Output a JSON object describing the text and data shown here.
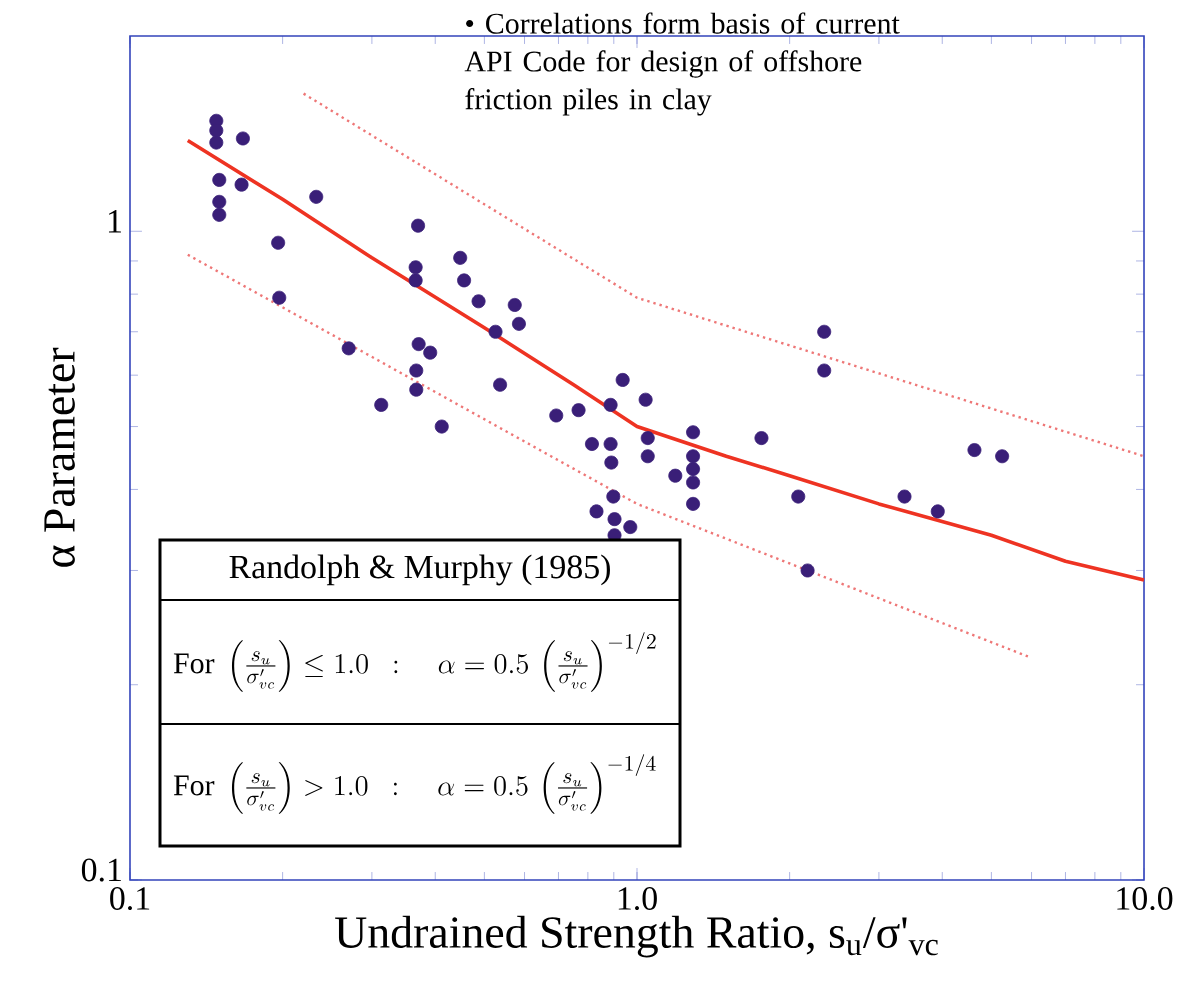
{
  "chart_data": {
    "type": "scatter",
    "xlabel": "Undrained Strength Ratio, s$_{u}$/σ'$_{vc}$",
    "ylabel": "α Parameter",
    "log": "xy",
    "xlim": [
      0.1,
      10
    ],
    "ylim": [
      0.1,
      2
    ],
    "xticks": [
      {
        "value": 0.1,
        "label": "0.1"
      },
      {
        "value": 1,
        "label": "1.0"
      },
      {
        "value": 10,
        "label": "10.0"
      }
    ],
    "yticks": [
      0.1,
      1
    ],
    "annotations": [
      "• Correlations form basis of current API Code for design of offshore friction piles in clay",
      "Randolph & Murphy (1985)",
      "\\mathrm{For}\\ \\left(\\frac{s_u}{\\sigma'_{vc}}\\right)\\leq 1.0\\ \\ :\\quad \\alpha = 0.5\\,\\left(\\frac{s_u}{\\sigma'_{vc}}\\right)^{-1/2}",
      "\\mathrm{For}\\ \\left(\\frac{s_u}{\\sigma'_{vc}}\\right) > 1.0\\ \\ :\\quad \\alpha = 0.5\\,\\left(\\frac{s_u}{\\sigma'_{vc}}\\right)^{-1/4}"
    ],
    "series": [
      {
        "color": "#3a1f78",
        "marker": "circle",
        "x": [
          0.148,
          0.148,
          0.148,
          0.167,
          0.15,
          0.166,
          0.15,
          0.15,
          0.233,
          0.196,
          0.197,
          0.27,
          0.313,
          0.37,
          0.366,
          0.366,
          0.448,
          0.456,
          0.487,
          0.574,
          0.585,
          0.526,
          0.371,
          0.391,
          0.367,
          0.367,
          0.412,
          0.537,
          0.693,
          0.767,
          0.887,
          0.937,
          0.815,
          0.887,
          1.04,
          0.89,
          1.05,
          1.05,
          1.29,
          1.29,
          1.29,
          1.19,
          1.29,
          1.29,
          0.898,
          0.832,
          0.903,
          0.97,
          0.903,
          1.76,
          2.08,
          2.17,
          2.34,
          2.34,
          3.37,
          3.92,
          4.63,
          5.25
        ],
        "values": [
          1.48,
          1.43,
          1.37,
          1.39,
          1.2,
          1.18,
          1.11,
          1.06,
          1.13,
          0.96,
          0.79,
          0.66,
          0.54,
          1.02,
          0.88,
          0.84,
          0.91,
          0.84,
          0.78,
          0.77,
          0.72,
          0.7,
          0.67,
          0.65,
          0.61,
          0.57,
          0.5,
          0.58,
          0.52,
          0.53,
          0.54,
          0.59,
          0.47,
          0.47,
          0.55,
          0.44,
          0.48,
          0.45,
          0.49,
          0.45,
          0.43,
          0.42,
          0.41,
          0.38,
          0.39,
          0.37,
          0.36,
          0.35,
          0.34,
          0.48,
          0.39,
          0.3,
          0.7,
          0.61,
          0.39,
          0.37,
          0.46,
          0.45
        ]
      },
      {
        "type": "line",
        "color": "#ee3322",
        "line_style": "solid",
        "marker": "none",
        "x": [
          0.13,
          0.2,
          0.3,
          0.5,
          0.75,
          1.0,
          1.5,
          2,
          3,
          5,
          7,
          10
        ],
        "values": [
          1.38,
          1.12,
          0.91,
          0.71,
          0.58,
          0.5,
          0.45,
          0.42,
          0.38,
          0.34,
          0.31,
          0.29
        ]
      },
      {
        "type": "line",
        "color": "#ee7777",
        "line_style": "dotted",
        "marker": "none",
        "x": [
          0.22,
          1.0,
          10
        ],
        "values": [
          1.63,
          0.79,
          0.45
        ]
      },
      {
        "type": "line",
        "color": "#ee7777",
        "line_style": "dotted",
        "marker": "none",
        "x": [
          0.13,
          1.0,
          6.0
        ],
        "values": [
          0.92,
          0.38,
          0.22
        ]
      }
    ]
  }
}
